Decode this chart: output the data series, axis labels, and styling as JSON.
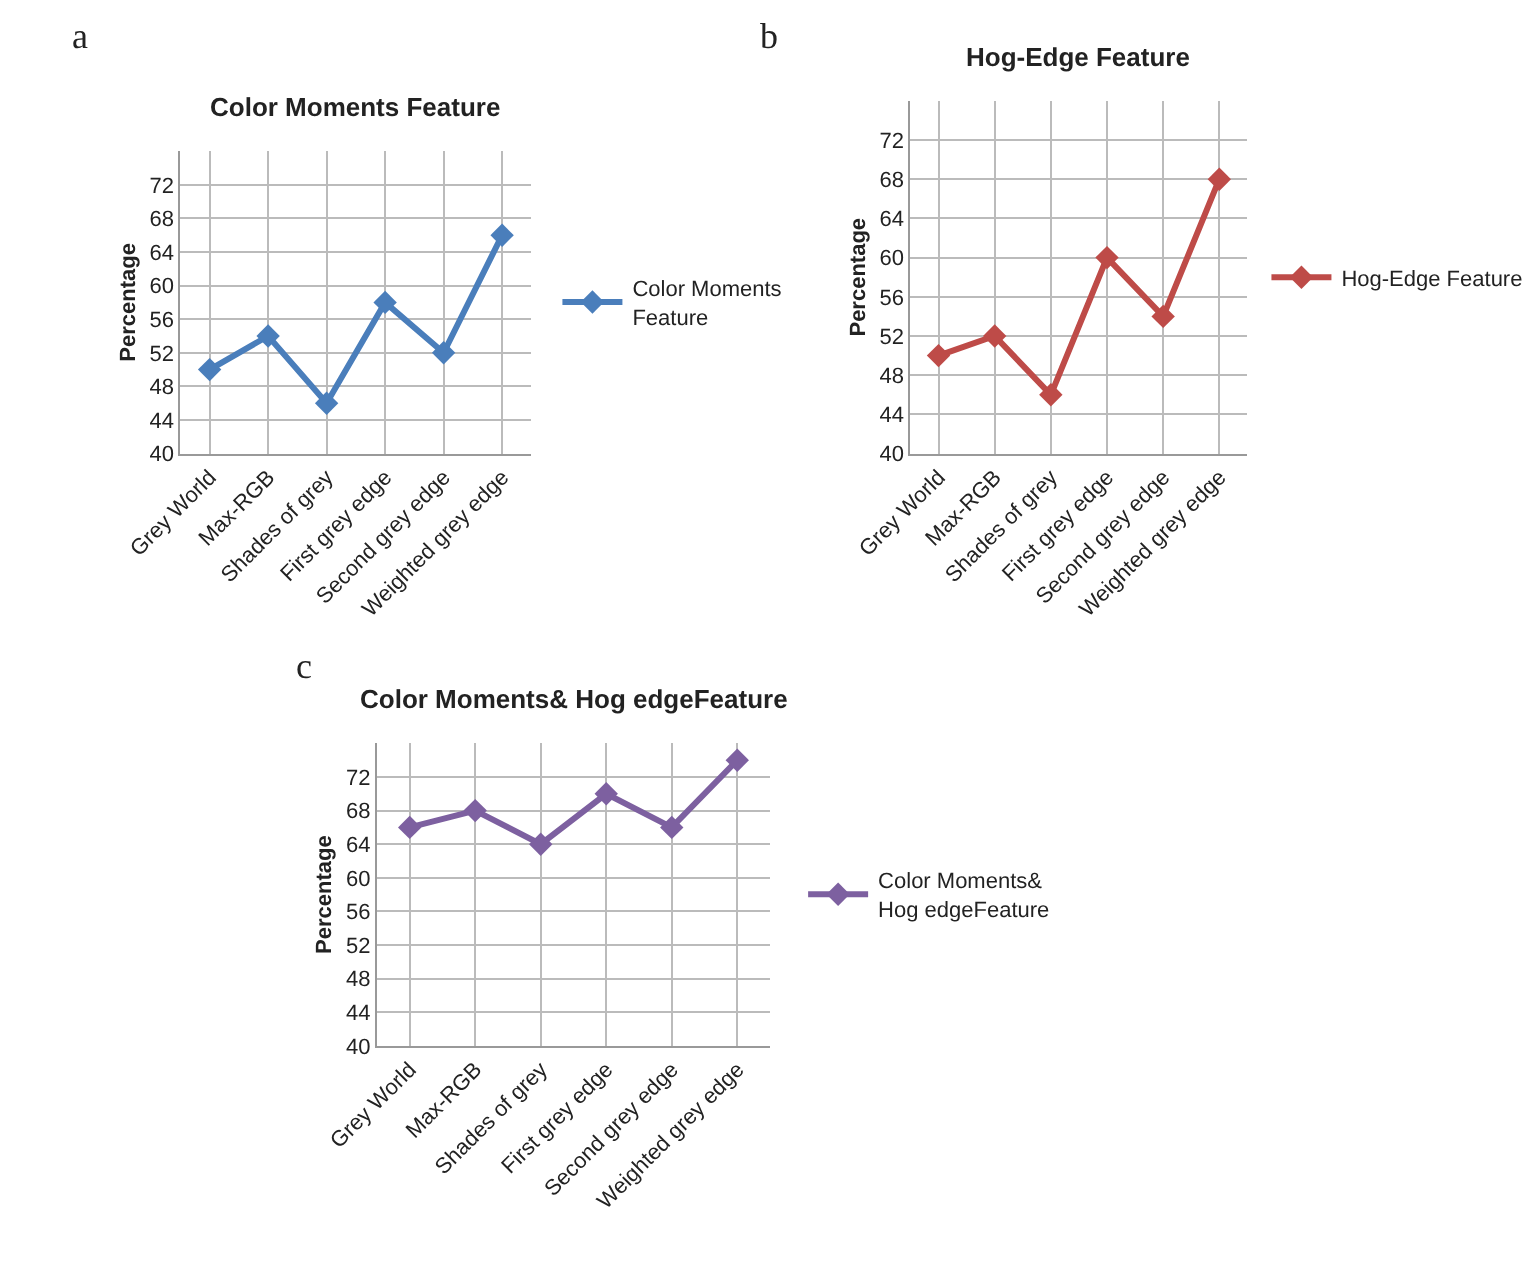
{
  "chart_data": [
    {
      "type": "line",
      "title": "Color Moments Feature",
      "ylabel": "Percentage",
      "annotations": [
        "a"
      ],
      "categories": [
        "Grey World",
        "Max-RGB",
        "Shades of grey",
        "First grey edge",
        "Second grey edge",
        "Weighted grey edge"
      ],
      "series": [
        {
          "name": "Color Moments Feature",
          "color": "#4a7ebb",
          "values": [
            50,
            54,
            46,
            58,
            52,
            66
          ]
        }
      ],
      "ylim": [
        40,
        76
      ],
      "yticks": [
        40,
        44,
        48,
        52,
        56,
        60,
        64,
        68,
        72
      ],
      "grid": true,
      "legend": "right",
      "marker": "diamond",
      "line_style": "solid"
    },
    {
      "type": "line",
      "title": "Hog-Edge Feature",
      "ylabel": "Percentage",
      "annotations": [
        "b"
      ],
      "categories": [
        "Grey World",
        "Max-RGB",
        "Shades of grey",
        "First grey edge",
        "Second grey edge",
        "Weighted grey edge"
      ],
      "series": [
        {
          "name": "Hog-Edge Feature",
          "color": "#be4b48",
          "values": [
            50,
            52,
            46,
            60,
            54,
            68
          ]
        }
      ],
      "ylim": [
        40,
        76
      ],
      "yticks": [
        40,
        44,
        48,
        52,
        56,
        60,
        64,
        68,
        72
      ],
      "grid": true,
      "legend": "right",
      "marker": "diamond",
      "line_style": "solid"
    },
    {
      "type": "line",
      "title": "Color Moments& Hog edgeFeature",
      "ylabel": "Percentage",
      "annotations": [
        "c"
      ],
      "categories": [
        "Grey World",
        "Max-RGB",
        "Shades of grey",
        "First grey edge",
        "Second grey edge",
        "Weighted grey edge"
      ],
      "series": [
        {
          "name": "Color Moments& Hog edgeFeature",
          "color": "#7d60a0",
          "values": [
            66,
            68,
            64,
            70,
            66,
            74
          ]
        }
      ],
      "ylim": [
        40,
        76
      ],
      "yticks": [
        40,
        44,
        48,
        52,
        56,
        60,
        64,
        68,
        72
      ],
      "grid": true,
      "legend": "right",
      "marker": "diamond",
      "line_style": "solid"
    }
  ]
}
